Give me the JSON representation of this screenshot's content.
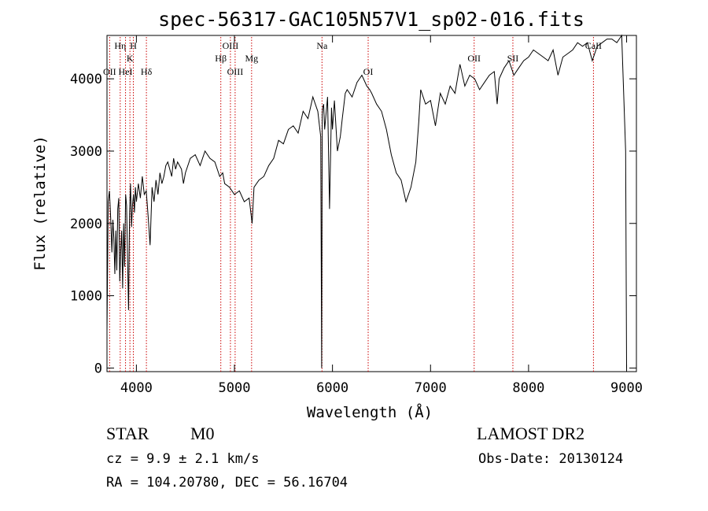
{
  "chart_data": {
    "type": "line",
    "title": "spec-56317-GAC105N57V1_sp02-016.fits",
    "xlabel": "Wavelength (Å)",
    "ylabel": "Flux (relative)",
    "xlim": [
      3700,
      9100
    ],
    "ylim": [
      -50,
      4600
    ],
    "xticks": [
      4000,
      5000,
      6000,
      7000,
      8000,
      9000
    ],
    "yticks": [
      0,
      1000,
      2000,
      3000,
      4000
    ],
    "grid": false,
    "line_color": "#000000",
    "marker_color": "#cc0000",
    "series": [
      {
        "x": [
          3700,
          3712,
          3725,
          3740,
          3750,
          3760,
          3770,
          3780,
          3790,
          3800,
          3810,
          3820,
          3830,
          3840,
          3850,
          3860,
          3870,
          3880,
          3890,
          3900,
          3910,
          3920,
          3930,
          3940,
          3950,
          3960,
          3970,
          3980,
          3990,
          4000,
          4020,
          4040,
          4060,
          4080,
          4100,
          4120,
          4140,
          4160,
          4180,
          4200,
          4220,
          4240,
          4260,
          4280,
          4300,
          4320,
          4340,
          4360,
          4380,
          4400,
          4420,
          4440,
          4460,
          4480,
          4500,
          4550,
          4600,
          4650,
          4700,
          4750,
          4800,
          4850,
          4880,
          4900,
          4950,
          5000,
          5050,
          5100,
          5150,
          5180,
          5200,
          5250,
          5300,
          5350,
          5400,
          5450,
          5500,
          5550,
          5600,
          5650,
          5700,
          5750,
          5800,
          5850,
          5880,
          5890,
          5895,
          5900,
          5910,
          5920,
          5950,
          5970,
          5990,
          6000,
          6020,
          6050,
          6080,
          6100,
          6130,
          6150,
          6200,
          6250,
          6300,
          6350,
          6380,
          6400,
          6450,
          6500,
          6550,
          6600,
          6650,
          6700,
          6750,
          6800,
          6850,
          6880,
          6900,
          6950,
          7000,
          7050,
          7100,
          7150,
          7200,
          7250,
          7300,
          7350,
          7400,
          7450,
          7500,
          7550,
          7600,
          7650,
          7680,
          7700,
          7750,
          7800,
          7850,
          7900,
          7950,
          8000,
          8050,
          8100,
          8150,
          8200,
          8250,
          8300,
          8350,
          8400,
          8450,
          8500,
          8550,
          8600,
          8650,
          8700,
          8750,
          8800,
          8850,
          8900,
          8950,
          8990,
          9000
        ],
        "y": [
          500,
          2300,
          2450,
          2000,
          1600,
          2050,
          1800,
          1300,
          1900,
          1350,
          2200,
          2350,
          1200,
          1600,
          1900,
          1100,
          2000,
          1400,
          2400,
          2250,
          1500,
          800,
          2150,
          2550,
          1950,
          2250,
          2400,
          2150,
          2500,
          2300,
          2550,
          2350,
          2650,
          2400,
          2450,
          2100,
          1700,
          2500,
          2300,
          2600,
          2400,
          2700,
          2550,
          2650,
          2800,
          2850,
          2750,
          2650,
          2900,
          2750,
          2850,
          2800,
          2750,
          2550,
          2700,
          2900,
          2950,
          2800,
          3000,
          2900,
          2850,
          2650,
          2700,
          2550,
          2500,
          2400,
          2450,
          2300,
          2350,
          2000,
          2500,
          2600,
          2650,
          2800,
          2900,
          3150,
          3100,
          3300,
          3350,
          3250,
          3550,
          3450,
          3750,
          3550,
          3200,
          0,
          3500,
          3600,
          3650,
          3300,
          3750,
          2200,
          3600,
          3300,
          3700,
          3000,
          3200,
          3450,
          3800,
          3850,
          3750,
          3950,
          4050,
          3900,
          3850,
          3800,
          3650,
          3550,
          3300,
          2950,
          2700,
          2600,
          2300,
          2500,
          2850,
          3400,
          3850,
          3650,
          3700,
          3350,
          3800,
          3650,
          3900,
          3800,
          4200,
          3900,
          4050,
          4000,
          3850,
          3950,
          4050,
          4100,
          3650,
          4000,
          4150,
          4250,
          4050,
          4150,
          4250,
          4300,
          4400,
          4350,
          4300,
          4250,
          4400,
          4050,
          4300,
          4350,
          4400,
          4500,
          4450,
          4500,
          4250,
          4450,
          4500,
          4550,
          4550,
          4500,
          4600,
          3000,
          0
        ]
      }
    ],
    "lines": [
      {
        "label": "OII",
        "x": 3727,
        "row": 3
      },
      {
        "label": "Hη",
        "x": 3835,
        "row": 1
      },
      {
        "label": "HeI",
        "x": 3889,
        "row": 3
      },
      {
        "label": "K",
        "x": 3934,
        "row": 2
      },
      {
        "label": "H",
        "x": 3969,
        "row": 1
      },
      {
        "label": "Hδ",
        "x": 4102,
        "row": 3
      },
      {
        "label": "Hβ",
        "x": 4861,
        "row": 2
      },
      {
        "label": "OIII",
        "x": 4959,
        "row": 1
      },
      {
        "label": "OIII",
        "x": 5007,
        "row": 3
      },
      {
        "label": "Mg",
        "x": 5175,
        "row": 2
      },
      {
        "label": "Na",
        "x": 5893,
        "row": 1
      },
      {
        "label": "OI",
        "x": 6364,
        "row": 3
      },
      {
        "label": "OII",
        "x": 7445,
        "row": 2
      },
      {
        "label": "SII",
        "x": 7840,
        "row": 2
      },
      {
        "label": "CaII",
        "x": 8662,
        "row": 1
      }
    ]
  },
  "info": {
    "object_type": "STAR",
    "subclass": "M0",
    "survey": "LAMOST DR2",
    "cz": "cz =  9.9 ± 2.1 km/s",
    "obs_date": "Obs-Date: 20130124",
    "coords": "RA = 104.20780, DEC =  56.16704"
  }
}
